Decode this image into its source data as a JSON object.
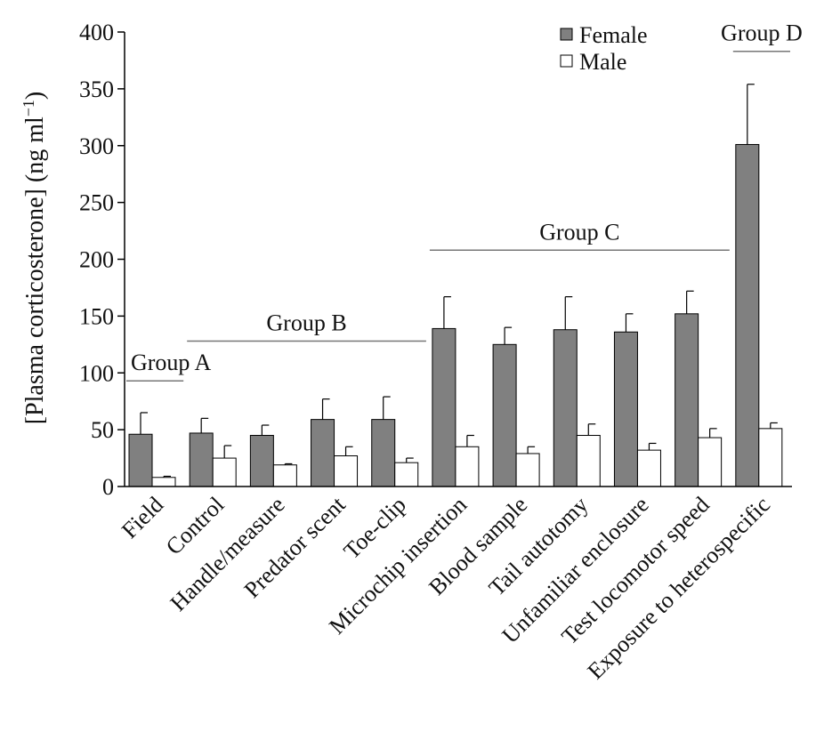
{
  "chart_data": {
    "type": "bar",
    "ylabel": "[Plasma corticosterone] (ng ml",
    "ylabel_sup": "−1",
    "ylabel_end": ")",
    "ylim": [
      0,
      400
    ],
    "yticks": [
      "0",
      "50",
      "100",
      "150",
      "200",
      "250",
      "300",
      "350",
      "400"
    ],
    "ytick_values": [
      0,
      50,
      100,
      150,
      200,
      250,
      300,
      350,
      400
    ],
    "categories": [
      "Field",
      "Control",
      "Handle/measure",
      "Predator scent",
      "Toe-clip",
      "Microchip insertion",
      "Blood sample",
      "Tail autotomy",
      "Unfamiliar enclosure",
      "Test locomotor speed",
      "Exposure to heterospecific"
    ],
    "series": [
      {
        "name": "Female",
        "color": "#808080",
        "values": [
          46,
          47,
          45,
          59,
          59,
          139,
          125,
          138,
          136,
          152,
          301
        ],
        "errors": [
          19,
          13,
          9,
          18,
          20,
          28,
          15,
          29,
          16,
          20,
          53
        ]
      },
      {
        "name": "Male",
        "color": "#ffffff",
        "values": [
          8,
          25,
          19,
          27,
          21,
          35,
          29,
          45,
          32,
          43,
          51
        ],
        "errors": [
          1,
          11,
          1,
          8,
          4,
          10,
          6,
          10,
          6,
          8,
          5
        ]
      }
    ],
    "groups": [
      {
        "label": "Group A",
        "from": 0,
        "to": 0,
        "level": 93
      },
      {
        "label": "Group B",
        "from": 1,
        "to": 4,
        "level": 128
      },
      {
        "label": "Group C",
        "from": 5,
        "to": 9,
        "level": 208
      },
      {
        "label": "Group D",
        "from": 10,
        "to": 10,
        "level": 383
      }
    ],
    "legend": {
      "position": "top-right"
    },
    "grid": false
  }
}
